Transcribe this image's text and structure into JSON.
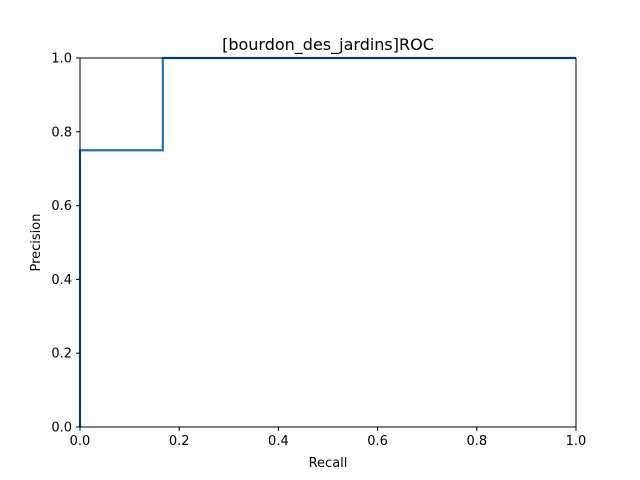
{
  "chart_data": {
    "type": "line",
    "title": "[bourdon_des_jardins]ROC",
    "xlabel": "Recall",
    "ylabel": "Precision",
    "xlim": [
      0,
      1
    ],
    "ylim": [
      0,
      1
    ],
    "xticks": [
      "0.0",
      "0.2",
      "0.4",
      "0.6",
      "0.8",
      "1.0"
    ],
    "yticks": [
      "0.0",
      "0.2",
      "0.4",
      "0.6",
      "0.8",
      "1.0"
    ],
    "grid": false,
    "series": [
      {
        "color": "#1f77b4",
        "drawstyle": "step",
        "x": [
          0.0,
          0.0,
          0.167,
          0.167,
          1.0
        ],
        "y": [
          0.0,
          0.75,
          0.75,
          1.0,
          1.0
        ]
      }
    ]
  }
}
